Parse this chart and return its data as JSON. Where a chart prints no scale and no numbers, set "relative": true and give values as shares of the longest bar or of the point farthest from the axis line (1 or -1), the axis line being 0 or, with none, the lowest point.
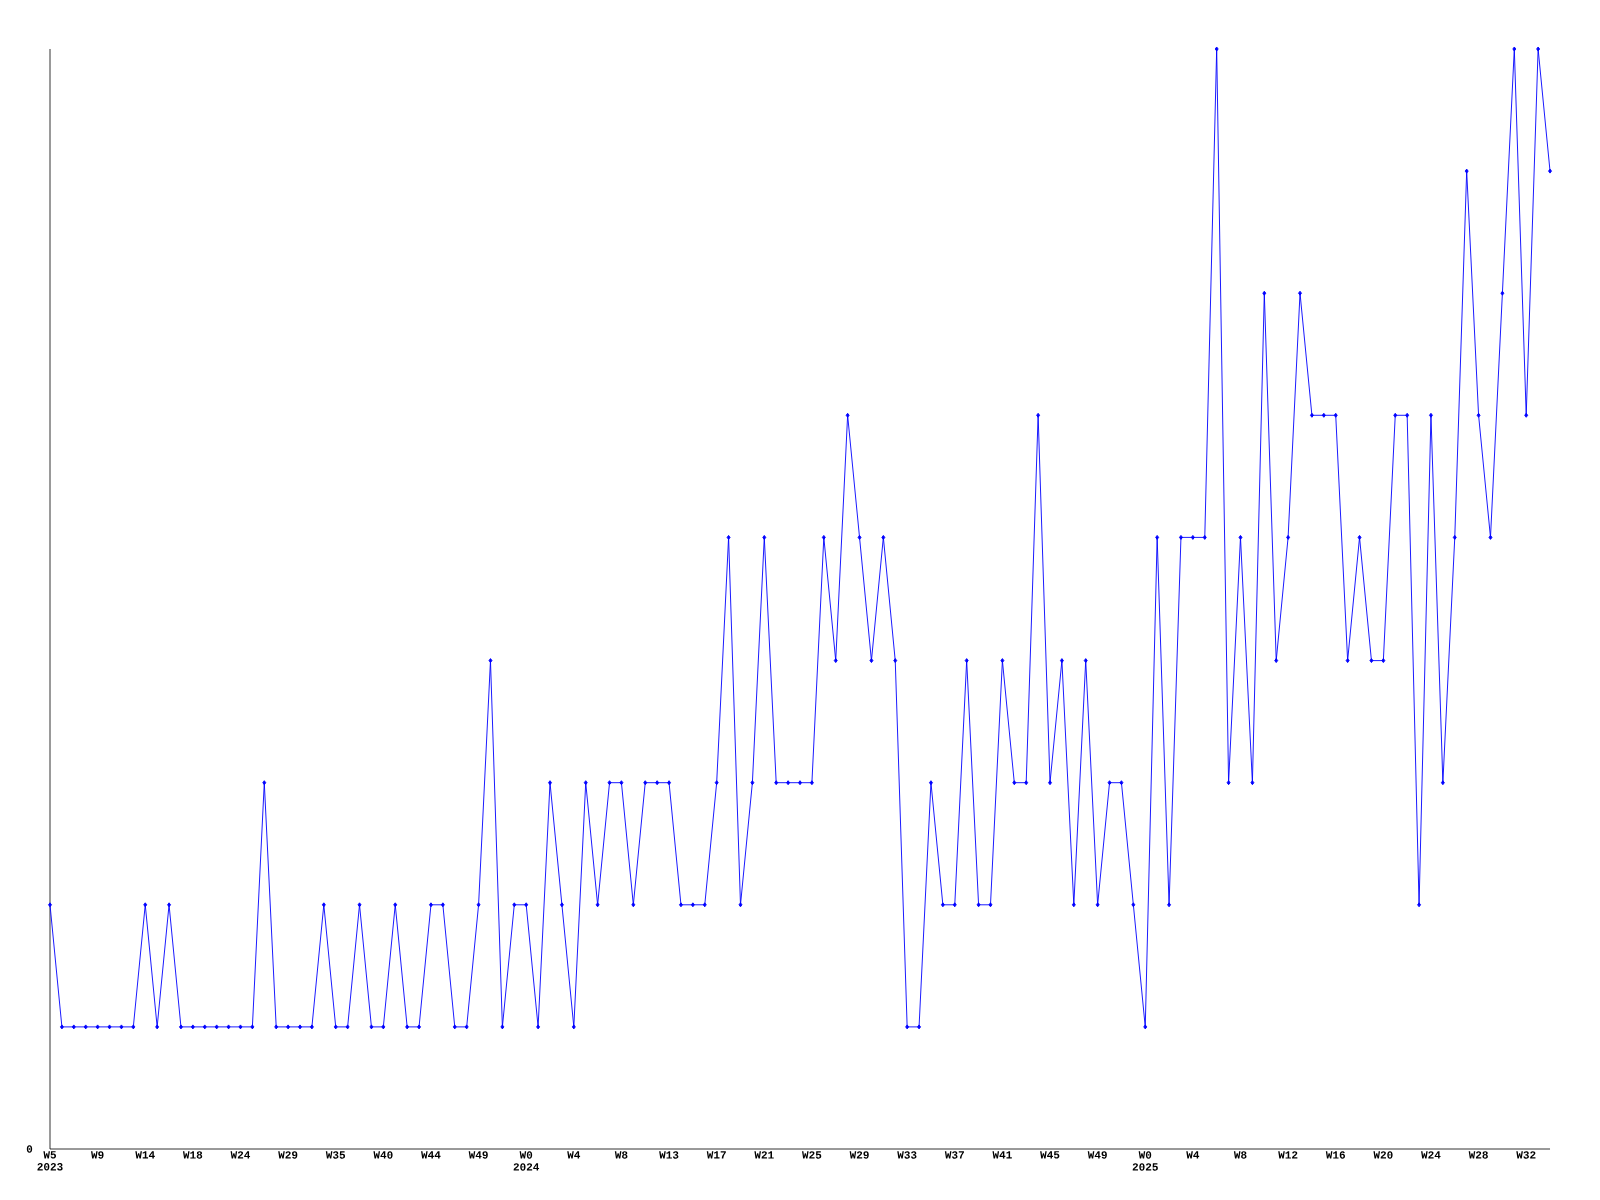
{
  "chart_data": {
    "type": "line",
    "relative": true,
    "color": "#0000ff",
    "marker": "diamond",
    "line_style": "solid",
    "grid": false,
    "annotations": [
      "0"
    ],
    "categories": [
      "W5 2023",
      null,
      null,
      null,
      "W9",
      null,
      null,
      null,
      "W14",
      null,
      null,
      null,
      "W18",
      null,
      null,
      null,
      "W24",
      null,
      null,
      null,
      "W29",
      null,
      null,
      null,
      "W35",
      null,
      null,
      null,
      "W40",
      null,
      null,
      null,
      "W44",
      null,
      null,
      null,
      "W49",
      null,
      null,
      null,
      "W0 2024",
      null,
      null,
      null,
      "W4",
      null,
      null,
      null,
      "W8",
      null,
      null,
      null,
      "W13",
      null,
      null,
      null,
      "W17",
      null,
      null,
      null,
      "W21",
      null,
      null,
      null,
      "W25",
      null,
      null,
      null,
      "W29",
      null,
      null,
      null,
      "W33",
      null,
      null,
      null,
      "W37",
      null,
      null,
      null,
      "W41",
      null,
      null,
      null,
      "W45",
      null,
      null,
      null,
      "W49",
      null,
      null,
      null,
      "W0 2025",
      null,
      null,
      null,
      "W4",
      null,
      null,
      null,
      "W8",
      null,
      null,
      null,
      "W12",
      null,
      null,
      null,
      "W16",
      null,
      null,
      null,
      "W20",
      null,
      null,
      null,
      "W24",
      null,
      null,
      null,
      "W28",
      null,
      null,
      null,
      "W32",
      null,
      null
    ],
    "values": [
      0.222,
      0.111,
      0.111,
      0.111,
      0.111,
      0.111,
      0.111,
      0.111,
      0.222,
      0.111,
      0.222,
      0.111,
      0.111,
      0.111,
      0.111,
      0.111,
      0.111,
      0.111,
      0.333,
      0.111,
      0.111,
      0.111,
      0.111,
      0.222,
      0.111,
      0.111,
      0.222,
      0.111,
      0.111,
      0.222,
      0.111,
      0.111,
      0.222,
      0.222,
      0.111,
      0.111,
      0.222,
      0.444,
      0.111,
      0.222,
      0.222,
      0.111,
      0.333,
      0.222,
      0.111,
      0.333,
      0.222,
      0.333,
      0.333,
      0.222,
      0.333,
      0.333,
      0.333,
      0.222,
      0.222,
      0.222,
      0.333,
      0.556,
      0.222,
      0.333,
      0.556,
      0.333,
      0.333,
      0.333,
      0.333,
      0.556,
      0.444,
      0.667,
      0.556,
      0.444,
      0.556,
      0.444,
      0.111,
      0.111,
      0.333,
      0.222,
      0.222,
      0.444,
      0.222,
      0.222,
      0.444,
      0.333,
      0.333,
      0.667,
      0.333,
      0.444,
      0.222,
      0.444,
      0.222,
      0.333,
      0.333,
      0.222,
      0.111,
      0.556,
      0.222,
      0.556,
      0.556,
      0.556,
      1,
      0.333,
      0.556,
      0.333,
      0.778,
      0.444,
      0.556,
      0.778,
      0.667,
      0.667,
      0.667,
      0.444,
      0.556,
      0.444,
      0.444,
      0.667,
      0.667,
      0.222,
      0.667,
      0.333,
      0.556,
      0.889,
      0.667,
      0.556,
      0.778,
      1,
      0.667,
      1,
      0.889
    ]
  }
}
